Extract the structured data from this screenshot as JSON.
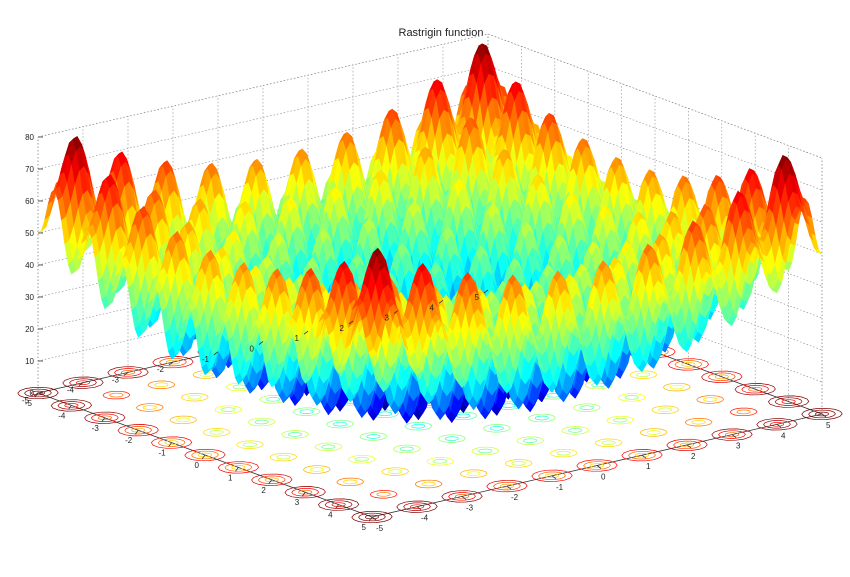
{
  "chart_data": {
    "type": "surface",
    "title": "Rastrigin function",
    "function": "f(x,y) = 20 + x^2 - 10cos(2πx) + y^2 - 10cos(2πy)",
    "xlim": [
      -5,
      5
    ],
    "ylim": [
      -5,
      5
    ],
    "zlim": [
      0,
      80
    ],
    "x_ticks": [
      "-5",
      "-4",
      "-3",
      "-2",
      "-1",
      "0",
      "1",
      "2",
      "3",
      "4",
      "5"
    ],
    "y_ticks": [
      "-5",
      "-4",
      "-3",
      "-2",
      "-1",
      "0",
      "1",
      "2",
      "3",
      "4",
      "5"
    ],
    "z_ticks": [
      "0",
      "10",
      "20",
      "30",
      "40",
      "50",
      "60",
      "70",
      "80"
    ],
    "grid": true,
    "colormap": "jet",
    "contour_floor": true
  }
}
